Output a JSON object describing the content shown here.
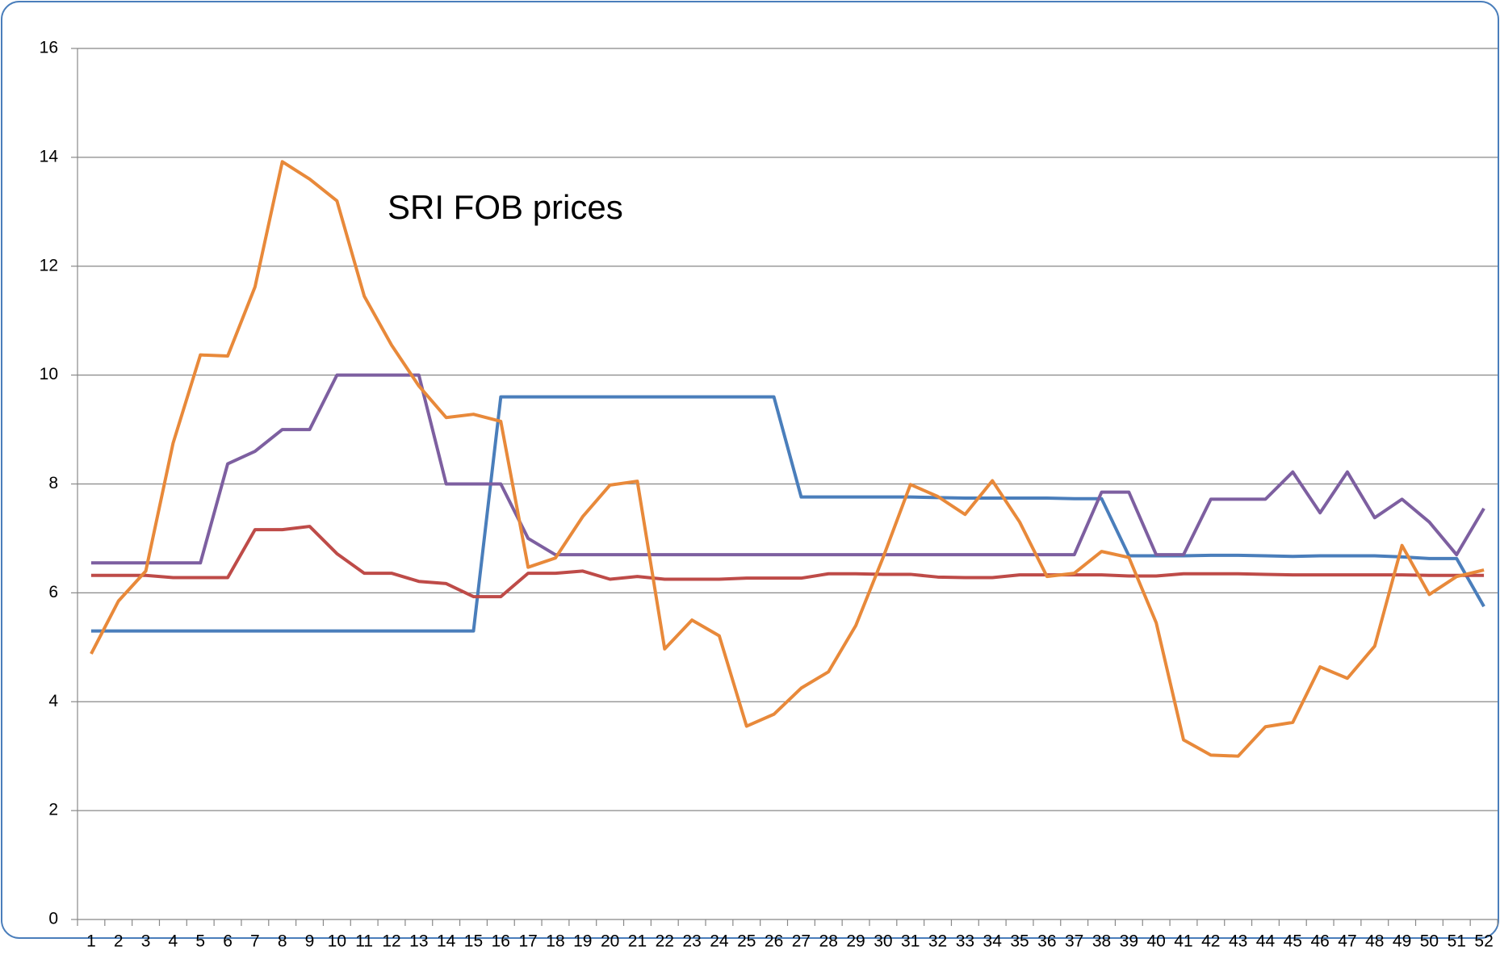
{
  "chart_data": {
    "type": "line",
    "title": "SRI FOB prices",
    "categories": [
      "1",
      "2",
      "3",
      "4",
      "5",
      "6",
      "7",
      "8",
      "9",
      "10",
      "11",
      "12",
      "13",
      "14",
      "15",
      "16",
      "17",
      "18",
      "19",
      "20",
      "21",
      "22",
      "23",
      "24",
      "25",
      "26",
      "27",
      "28",
      "29",
      "30",
      "31",
      "32",
      "33",
      "34",
      "35",
      "36",
      "37",
      "38",
      "39",
      "40",
      "41",
      "42",
      "43",
      "44",
      "45",
      "46",
      "47",
      "48",
      "49",
      "50",
      "51",
      "52"
    ],
    "series": [
      {
        "color": "#4a7ebb",
        "values": [
          5.3,
          5.3,
          5.3,
          5.3,
          5.3,
          5.3,
          5.3,
          5.3,
          5.3,
          5.3,
          5.3,
          5.3,
          5.3,
          5.3,
          5.3,
          9.6,
          9.6,
          9.6,
          9.6,
          9.6,
          9.6,
          9.6,
          9.6,
          9.6,
          9.6,
          9.6,
          7.76,
          7.76,
          7.76,
          7.76,
          7.76,
          7.75,
          7.74,
          7.74,
          7.74,
          7.74,
          7.73,
          7.73,
          6.68,
          6.68,
          6.68,
          6.69,
          6.69,
          6.68,
          6.67,
          6.68,
          6.68,
          6.68,
          6.66,
          6.63,
          6.63,
          5.75
        ]
      },
      {
        "color": "#be4b48",
        "values": [
          6.32,
          6.32,
          6.32,
          6.28,
          6.28,
          6.28,
          7.16,
          7.16,
          7.22,
          6.72,
          6.36,
          6.36,
          6.21,
          6.17,
          5.93,
          5.93,
          6.36,
          6.36,
          6.4,
          6.25,
          6.3,
          6.25,
          6.25,
          6.25,
          6.27,
          6.27,
          6.27,
          6.35,
          6.35,
          6.34,
          6.34,
          6.29,
          6.28,
          6.28,
          6.33,
          6.33,
          6.33,
          6.33,
          6.31,
          6.31,
          6.35,
          6.35,
          6.35,
          6.34,
          6.33,
          6.33,
          6.33,
          6.33,
          6.33,
          6.32,
          6.32,
          6.32
        ]
      },
      {
        "color": "#7d5fa0",
        "values": [
          6.55,
          6.55,
          6.55,
          6.55,
          6.55,
          8.37,
          8.6,
          9.0,
          9.0,
          10.0,
          10.0,
          10.0,
          10.0,
          8.0,
          8.0,
          8.0,
          7.0,
          6.7,
          6.7,
          6.7,
          6.7,
          6.7,
          6.7,
          6.7,
          6.7,
          6.7,
          6.7,
          6.7,
          6.7,
          6.7,
          6.7,
          6.7,
          6.7,
          6.7,
          6.7,
          6.7,
          6.7,
          7.85,
          7.85,
          6.7,
          6.7,
          7.72,
          7.72,
          7.72,
          8.22,
          7.47,
          8.22,
          7.38,
          7.72,
          7.3,
          6.7,
          7.55
        ]
      },
      {
        "color": "#e8893a",
        "values": [
          4.88,
          5.85,
          6.4,
          8.75,
          10.37,
          10.35,
          11.62,
          13.92,
          13.6,
          13.2,
          11.45,
          10.55,
          9.8,
          9.22,
          9.28,
          9.15,
          6.47,
          6.64,
          7.4,
          7.98,
          8.05,
          4.97,
          5.5,
          5.21,
          3.55,
          3.77,
          4.25,
          4.55,
          5.4,
          6.65,
          7.99,
          7.77,
          7.44,
          8.06,
          7.3,
          6.3,
          6.36,
          6.76,
          6.65,
          5.45,
          3.3,
          3.02,
          3.0,
          3.54,
          3.62,
          4.64,
          4.43,
          5.02,
          6.87,
          5.97,
          6.3,
          6.42
        ]
      }
    ],
    "ylim": [
      0,
      16
    ],
    "yticks": [
      0,
      2,
      4,
      6,
      8,
      10,
      12,
      14,
      16
    ],
    "grid": true
  }
}
